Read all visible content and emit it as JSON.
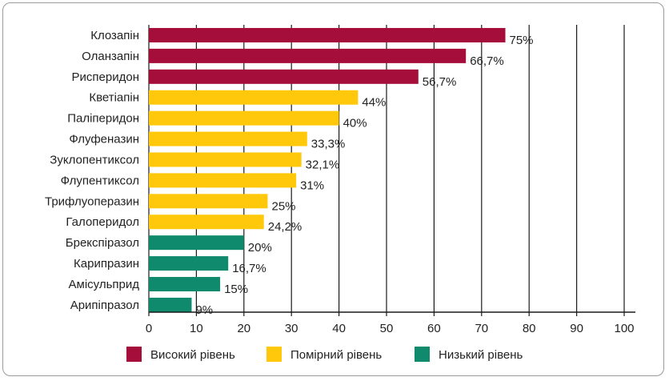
{
  "chart_data": {
    "type": "bar",
    "orientation": "horizontal",
    "categories": [
      "Клозапін",
      "Оланзапін",
      "Рисперидон",
      "Кветіапін",
      "Паліперидон",
      "Флуфеназин",
      "Зуклопентиксол",
      "Флупентиксол",
      "Трифлуоперазин",
      "Галоперидол",
      "Брекспіразол",
      "Карипразин",
      "Амісульприд",
      "Арипіпразол"
    ],
    "values": [
      75,
      66.7,
      56.7,
      44,
      40,
      33.3,
      32.1,
      31,
      25,
      24.2,
      20,
      16.7,
      15,
      9
    ],
    "value_labels": [
      "75%",
      "66,7%",
      "56,7%",
      "44%",
      "40%",
      "33,3%",
      "32,1%",
      "31%",
      "25%",
      "24,2%",
      "20%",
      "16,7%",
      "15%",
      "9%"
    ],
    "groups": [
      0,
      0,
      0,
      1,
      1,
      1,
      1,
      1,
      1,
      1,
      2,
      2,
      2,
      2
    ],
    "legend": [
      {
        "label": "Високий рівень",
        "color": "#a50d3a"
      },
      {
        "label": "Помірний рівень",
        "color": "#ffc80a"
      },
      {
        "label": "Низький рівень",
        "color": "#0f8a6c"
      }
    ],
    "xlim": [
      0,
      100
    ],
    "xticks": [
      "0",
      "10",
      "20",
      "30",
      "40",
      "50",
      "60",
      "70",
      "80",
      "90",
      "100"
    ],
    "grid": "vertical",
    "legend_position": "bottom",
    "title": "",
    "xlabel": "",
    "ylabel": ""
  }
}
